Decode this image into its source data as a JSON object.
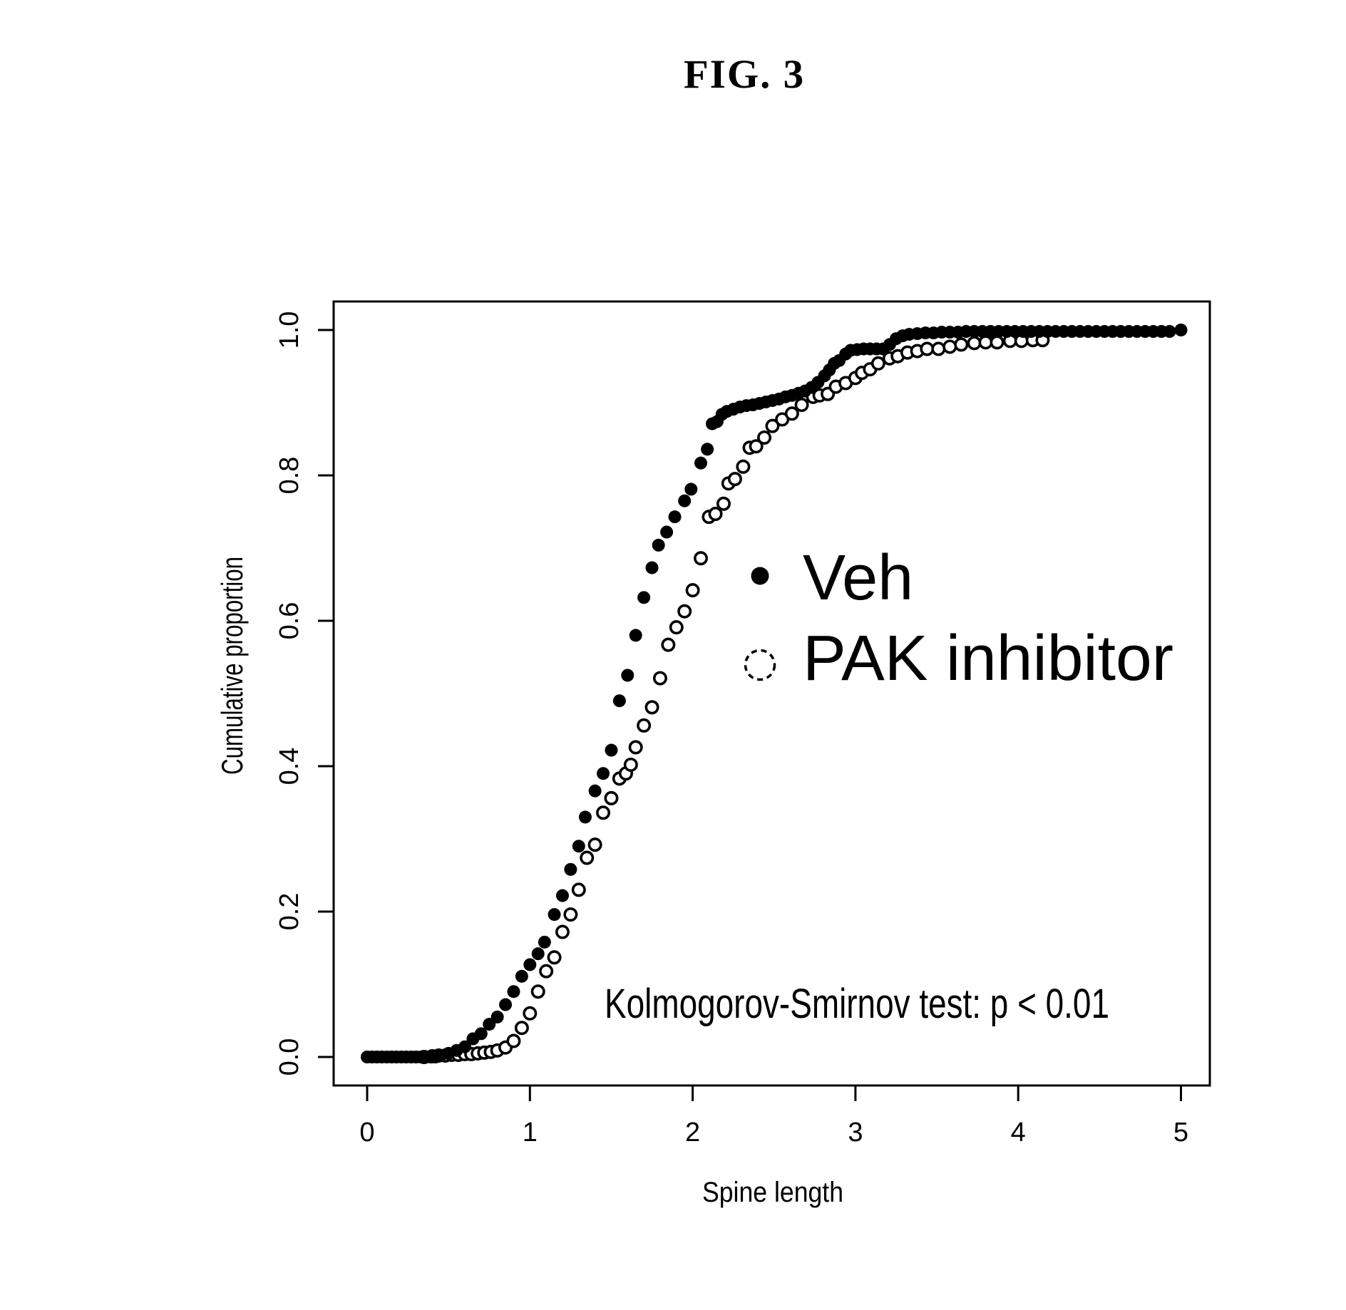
{
  "figure": {
    "label": "FIG. 3"
  },
  "colors": {
    "foreground": "#000000",
    "background": "#ffffff"
  },
  "chart_data": {
    "type": "scatter",
    "title": "FIG. 3",
    "xlabel": "Spine length",
    "ylabel": "Cumulative proportion",
    "xlim": [
      0,
      5
    ],
    "ylim": [
      0.0,
      1.0
    ],
    "x_ticks": [
      "0",
      "1",
      "2",
      "3",
      "4",
      "5"
    ],
    "y_ticks": [
      "0.0",
      "0.2",
      "0.4",
      "0.6",
      "0.8",
      "1.0"
    ],
    "grid": false,
    "legend_position": "inside-center-right",
    "annotation": "Kolmogorov-Smirnov test: p < 0.01",
    "series": [
      {
        "name": "Veh",
        "marker": "filled-circle",
        "color": "#000000",
        "points": [
          [
            0,
            0
          ],
          [
            0.03,
            0
          ],
          [
            0.06,
            0
          ],
          [
            0.09,
            0
          ],
          [
            0.12,
            0
          ],
          [
            0.15,
            0
          ],
          [
            0.18,
            0
          ],
          [
            0.21,
            0
          ],
          [
            0.24,
            0
          ],
          [
            0.27,
            0
          ],
          [
            0.3,
            0
          ],
          [
            0.33,
            0
          ],
          [
            0.36,
            0
          ],
          [
            0.39,
            0
          ],
          [
            0.42,
            0
          ],
          [
            0.45,
            0.002
          ],
          [
            0.5,
            0.005
          ],
          [
            0.55,
            0.009
          ],
          [
            0.6,
            0.014
          ],
          [
            0.65,
            0.025
          ],
          [
            0.7,
            0.032
          ],
          [
            0.75,
            0.045
          ],
          [
            0.8,
            0.055
          ],
          [
            0.85,
            0.072
          ],
          [
            0.9,
            0.09
          ],
          [
            0.95,
            0.111
          ],
          [
            1,
            0.127
          ],
          [
            1.05,
            0.142
          ],
          [
            1.09,
            0.158
          ],
          [
            1.15,
            0.196
          ],
          [
            1.2,
            0.222
          ],
          [
            1.25,
            0.258
          ],
          [
            1.3,
            0.29
          ],
          [
            1.34,
            0.33
          ],
          [
            1.4,
            0.366
          ],
          [
            1.45,
            0.39
          ],
          [
            1.5,
            0.422
          ],
          [
            1.55,
            0.49
          ],
          [
            1.6,
            0.525
          ],
          [
            1.65,
            0.58
          ],
          [
            1.7,
            0.632
          ],
          [
            1.75,
            0.673
          ],
          [
            1.79,
            0.704
          ],
          [
            1.84,
            0.722
          ],
          [
            1.89,
            0.743
          ],
          [
            1.95,
            0.765
          ],
          [
            1.99,
            0.781
          ],
          [
            2.05,
            0.817
          ],
          [
            2.09,
            0.836
          ],
          [
            2.12,
            0.871
          ],
          [
            2.15,
            0.874
          ],
          [
            2.18,
            0.884
          ],
          [
            2.21,
            0.888
          ],
          [
            2.25,
            0.891
          ],
          [
            2.29,
            0.894
          ],
          [
            2.33,
            0.896
          ],
          [
            2.37,
            0.897
          ],
          [
            2.41,
            0.899
          ],
          [
            2.45,
            0.901
          ],
          [
            2.49,
            0.903
          ],
          [
            2.53,
            0.905
          ],
          [
            2.57,
            0.908
          ],
          [
            2.61,
            0.91
          ],
          [
            2.65,
            0.913
          ],
          [
            2.69,
            0.916
          ],
          [
            2.73,
            0.921
          ],
          [
            2.77,
            0.928
          ],
          [
            2.81,
            0.937
          ],
          [
            2.84,
            0.945
          ],
          [
            2.87,
            0.954
          ],
          [
            2.9,
            0.958
          ],
          [
            2.94,
            0.967
          ],
          [
            2.97,
            0.972
          ],
          [
            3.01,
            0.973
          ],
          [
            3.05,
            0.974
          ],
          [
            3.09,
            0.974
          ],
          [
            3.13,
            0.974
          ],
          [
            3.17,
            0.974
          ],
          [
            3.21,
            0.98
          ],
          [
            3.25,
            0.988
          ],
          [
            3.29,
            0.992
          ],
          [
            3.33,
            0.994
          ],
          [
            3.38,
            0.995
          ],
          [
            3.43,
            0.996
          ],
          [
            3.48,
            0.996
          ],
          [
            3.53,
            0.997
          ],
          [
            3.58,
            0.997
          ],
          [
            3.63,
            0.997
          ],
          [
            3.68,
            0.998
          ],
          [
            3.73,
            0.998
          ],
          [
            3.78,
            0.998
          ],
          [
            3.83,
            0.998
          ],
          [
            3.88,
            0.998
          ],
          [
            3.93,
            0.998
          ],
          [
            3.98,
            0.998
          ],
          [
            4.03,
            0.998
          ],
          [
            4.08,
            0.998
          ],
          [
            4.13,
            0.998
          ],
          [
            4.18,
            0.998
          ],
          [
            4.23,
            0.998
          ],
          [
            4.28,
            0.998
          ],
          [
            4.33,
            0.998
          ],
          [
            4.38,
            0.998
          ],
          [
            4.43,
            0.998
          ],
          [
            4.48,
            0.998
          ],
          [
            4.53,
            0.998
          ],
          [
            4.58,
            0.998
          ],
          [
            4.63,
            0.998
          ],
          [
            4.68,
            0.998
          ],
          [
            4.73,
            0.998
          ],
          [
            4.78,
            0.998
          ],
          [
            4.83,
            0.998
          ],
          [
            4.88,
            0.998
          ],
          [
            4.93,
            0.998
          ],
          [
            5,
            1
          ]
        ]
      },
      {
        "name": "PAK inhibitor",
        "marker": "open-circle",
        "color": "#000000",
        "points": [
          [
            0.35,
            0
          ],
          [
            0.4,
            0.001
          ],
          [
            0.44,
            0.002
          ],
          [
            0.48,
            0.002
          ],
          [
            0.52,
            0.003
          ],
          [
            0.56,
            0.003
          ],
          [
            0.6,
            0.004
          ],
          [
            0.64,
            0.004
          ],
          [
            0.68,
            0.005
          ],
          [
            0.72,
            0.006
          ],
          [
            0.76,
            0.007
          ],
          [
            0.8,
            0.009
          ],
          [
            0.85,
            0.013
          ],
          [
            0.9,
            0.022
          ],
          [
            0.95,
            0.04
          ],
          [
            1,
            0.06
          ],
          [
            1.05,
            0.09
          ],
          [
            1.1,
            0.118
          ],
          [
            1.15,
            0.137
          ],
          [
            1.2,
            0.172
          ],
          [
            1.25,
            0.196
          ],
          [
            1.3,
            0.23
          ],
          [
            1.35,
            0.274
          ],
          [
            1.4,
            0.292
          ],
          [
            1.45,
            0.336
          ],
          [
            1.5,
            0.356
          ],
          [
            1.55,
            0.383
          ],
          [
            1.59,
            0.39
          ],
          [
            1.62,
            0.402
          ],
          [
            1.65,
            0.426
          ],
          [
            1.7,
            0.456
          ],
          [
            1.75,
            0.481
          ],
          [
            1.8,
            0.521
          ],
          [
            1.85,
            0.567
          ],
          [
            1.9,
            0.591
          ],
          [
            1.95,
            0.613
          ],
          [
            2,
            0.642
          ],
          [
            2.05,
            0.686
          ],
          [
            2.1,
            0.743
          ],
          [
            2.14,
            0.747
          ],
          [
            2.19,
            0.761
          ],
          [
            2.22,
            0.789
          ],
          [
            2.26,
            0.795
          ],
          [
            2.31,
            0.812
          ],
          [
            2.35,
            0.838
          ],
          [
            2.39,
            0.84
          ],
          [
            2.44,
            0.852
          ],
          [
            2.49,
            0.868
          ],
          [
            2.55,
            0.877
          ],
          [
            2.61,
            0.885
          ],
          [
            2.67,
            0.897
          ],
          [
            2.74,
            0.908
          ],
          [
            2.78,
            0.91
          ],
          [
            2.83,
            0.912
          ],
          [
            2.88,
            0.922
          ],
          [
            2.94,
            0.927
          ],
          [
            3,
            0.934
          ],
          [
            3.04,
            0.941
          ],
          [
            3.09,
            0.946
          ],
          [
            3.14,
            0.954
          ],
          [
            3.21,
            0.961
          ],
          [
            3.26,
            0.964
          ],
          [
            3.32,
            0.969
          ],
          [
            3.38,
            0.971
          ],
          [
            3.44,
            0.974
          ],
          [
            3.51,
            0.974
          ],
          [
            3.58,
            0.977
          ],
          [
            3.65,
            0.98
          ],
          [
            3.73,
            0.982
          ],
          [
            3.8,
            0.983
          ],
          [
            3.87,
            0.983
          ],
          [
            3.95,
            0.985
          ],
          [
            4.02,
            0.985
          ],
          [
            4.09,
            0.986
          ],
          [
            4.15,
            0.986
          ]
        ]
      }
    ]
  }
}
